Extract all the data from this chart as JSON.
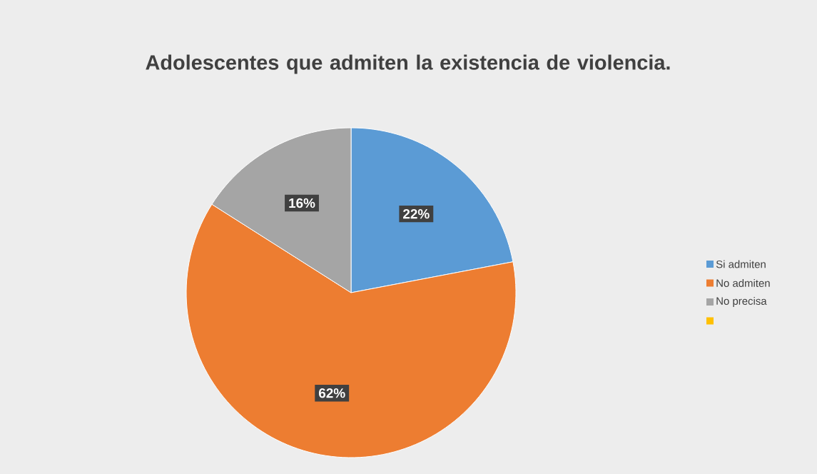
{
  "chart_data": {
    "type": "pie",
    "title": "Adolescentes que admiten la existencia de violencia.",
    "categories": [
      "Si admiten",
      "No admiten",
      "No precisa",
      null
    ],
    "values": [
      22,
      62,
      16,
      0
    ],
    "value_labels": [
      "22%",
      "62%",
      "16%",
      null
    ],
    "colors": [
      "#5b9bd5",
      "#ed7d31",
      "#a5a5a5",
      "#ffc000"
    ],
    "legend": "right"
  }
}
